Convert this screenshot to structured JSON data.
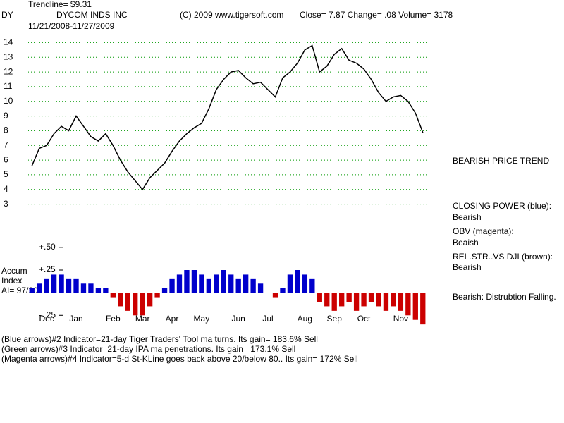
{
  "header": {
    "trendline": "Trendline= $9.31",
    "symbol": "DY",
    "company": "DYCOM INDS INC",
    "copyright": "(C) 2009 www.tigersoft.com",
    "quote": "Close=  7.87  Change= .08 Volume= 3178",
    "date_range": "11/21/2008-11/27/2009"
  },
  "left_labels": {
    "accum": "Accum",
    "index": "Index",
    "ai": "AI= 97/200"
  },
  "right_notes": [
    "BEARISH PRICE TREND",
    "CLOSING POWER (blue):",
    "Bearish",
    "OBV (magenta):",
    "Beaish",
    "REL.STR..VS DJI (brown):",
    "Bearish",
    "Bearish: Distrubtion Falling."
  ],
  "footer": [
    "(Blue arrows)#2 Indicator=21-day Tiger Traders' Tool ma turns.  Its gain= 183.6% Sell",
    "(Green arrows)#3 Indicator=21-day IPA ma penetrations.  Its gain= 173.1% Sell",
    "(Magenta arrows)#4 Indicator=5-d St-KLine goes back above 20/below 80..  Its gain= 172% Sell"
  ],
  "chart_data": {
    "type": "line",
    "categories": [
      null,
      null,
      "Dec",
      null,
      null,
      null,
      "Jan",
      null,
      null,
      null,
      null,
      "Feb",
      null,
      null,
      null,
      "Mar",
      null,
      null,
      null,
      "Apr",
      null,
      null,
      null,
      "May",
      null,
      null,
      null,
      null,
      "Jun",
      null,
      null,
      null,
      "Jul",
      null,
      null,
      null,
      null,
      "Aug",
      null,
      null,
      null,
      "Sep",
      null,
      null,
      null,
      "Oct",
      null,
      null,
      null,
      null,
      "Nov",
      null,
      null,
      null
    ],
    "series": [
      {
        "values": [
          5.6,
          6.8,
          7.0,
          7.8,
          8.3,
          8.0,
          9.0,
          8.3,
          7.6,
          7.3,
          7.8,
          7.0,
          6.0,
          5.2,
          4.6,
          4.0,
          4.8,
          5.3,
          5.8,
          6.6,
          7.3,
          7.8,
          8.2,
          8.5,
          9.5,
          10.8,
          11.5,
          12.0,
          12.1,
          11.6,
          11.2,
          11.3,
          10.8,
          10.3,
          11.6,
          12.0,
          12.6,
          13.5,
          13.8,
          12.0,
          12.4,
          13.2,
          13.6,
          12.8,
          12.6,
          12.2,
          11.5,
          10.6,
          10.0,
          10.3,
          10.4,
          10.0,
          9.2,
          7.87
        ],
        "color": "#000000"
      },
      {
        "type": "bar",
        "axis": "y2",
        "values": [
          0.05,
          0.1,
          0.15,
          0.2,
          0.2,
          0.15,
          0.15,
          0.1,
          0.1,
          0.05,
          0.05,
          -0.05,
          -0.15,
          -0.2,
          -0.25,
          -0.25,
          -0.15,
          -0.05,
          0.05,
          0.15,
          0.2,
          0.25,
          0.25,
          0.2,
          0.15,
          0.2,
          0.25,
          0.2,
          0.15,
          0.2,
          0.15,
          0.1,
          0.0,
          -0.05,
          0.05,
          0.2,
          0.25,
          0.2,
          0.15,
          -0.1,
          -0.15,
          -0.2,
          -0.15,
          -0.1,
          -0.2,
          -0.15,
          -0.1,
          -0.15,
          -0.2,
          -0.15,
          -0.2,
          -0.25,
          -0.3,
          -0.35
        ],
        "positive_color": "#0000cc",
        "negative_color": "#cc0000"
      }
    ],
    "ylim": [
      2.5,
      14.5
    ],
    "yticks": [
      3,
      4,
      5,
      6,
      7,
      8,
      9,
      10,
      11,
      12,
      13,
      14
    ],
    "grid": true,
    "grid_color": "#009900",
    "y2lim": [
      -0.45,
      0.6
    ],
    "y2ticks": [
      {
        "value": 0.5,
        "label": "+.50"
      },
      {
        "value": 0.25,
        "label": "+.25"
      },
      {
        "value": -0.25,
        "label": "- .25"
      }
    ]
  }
}
